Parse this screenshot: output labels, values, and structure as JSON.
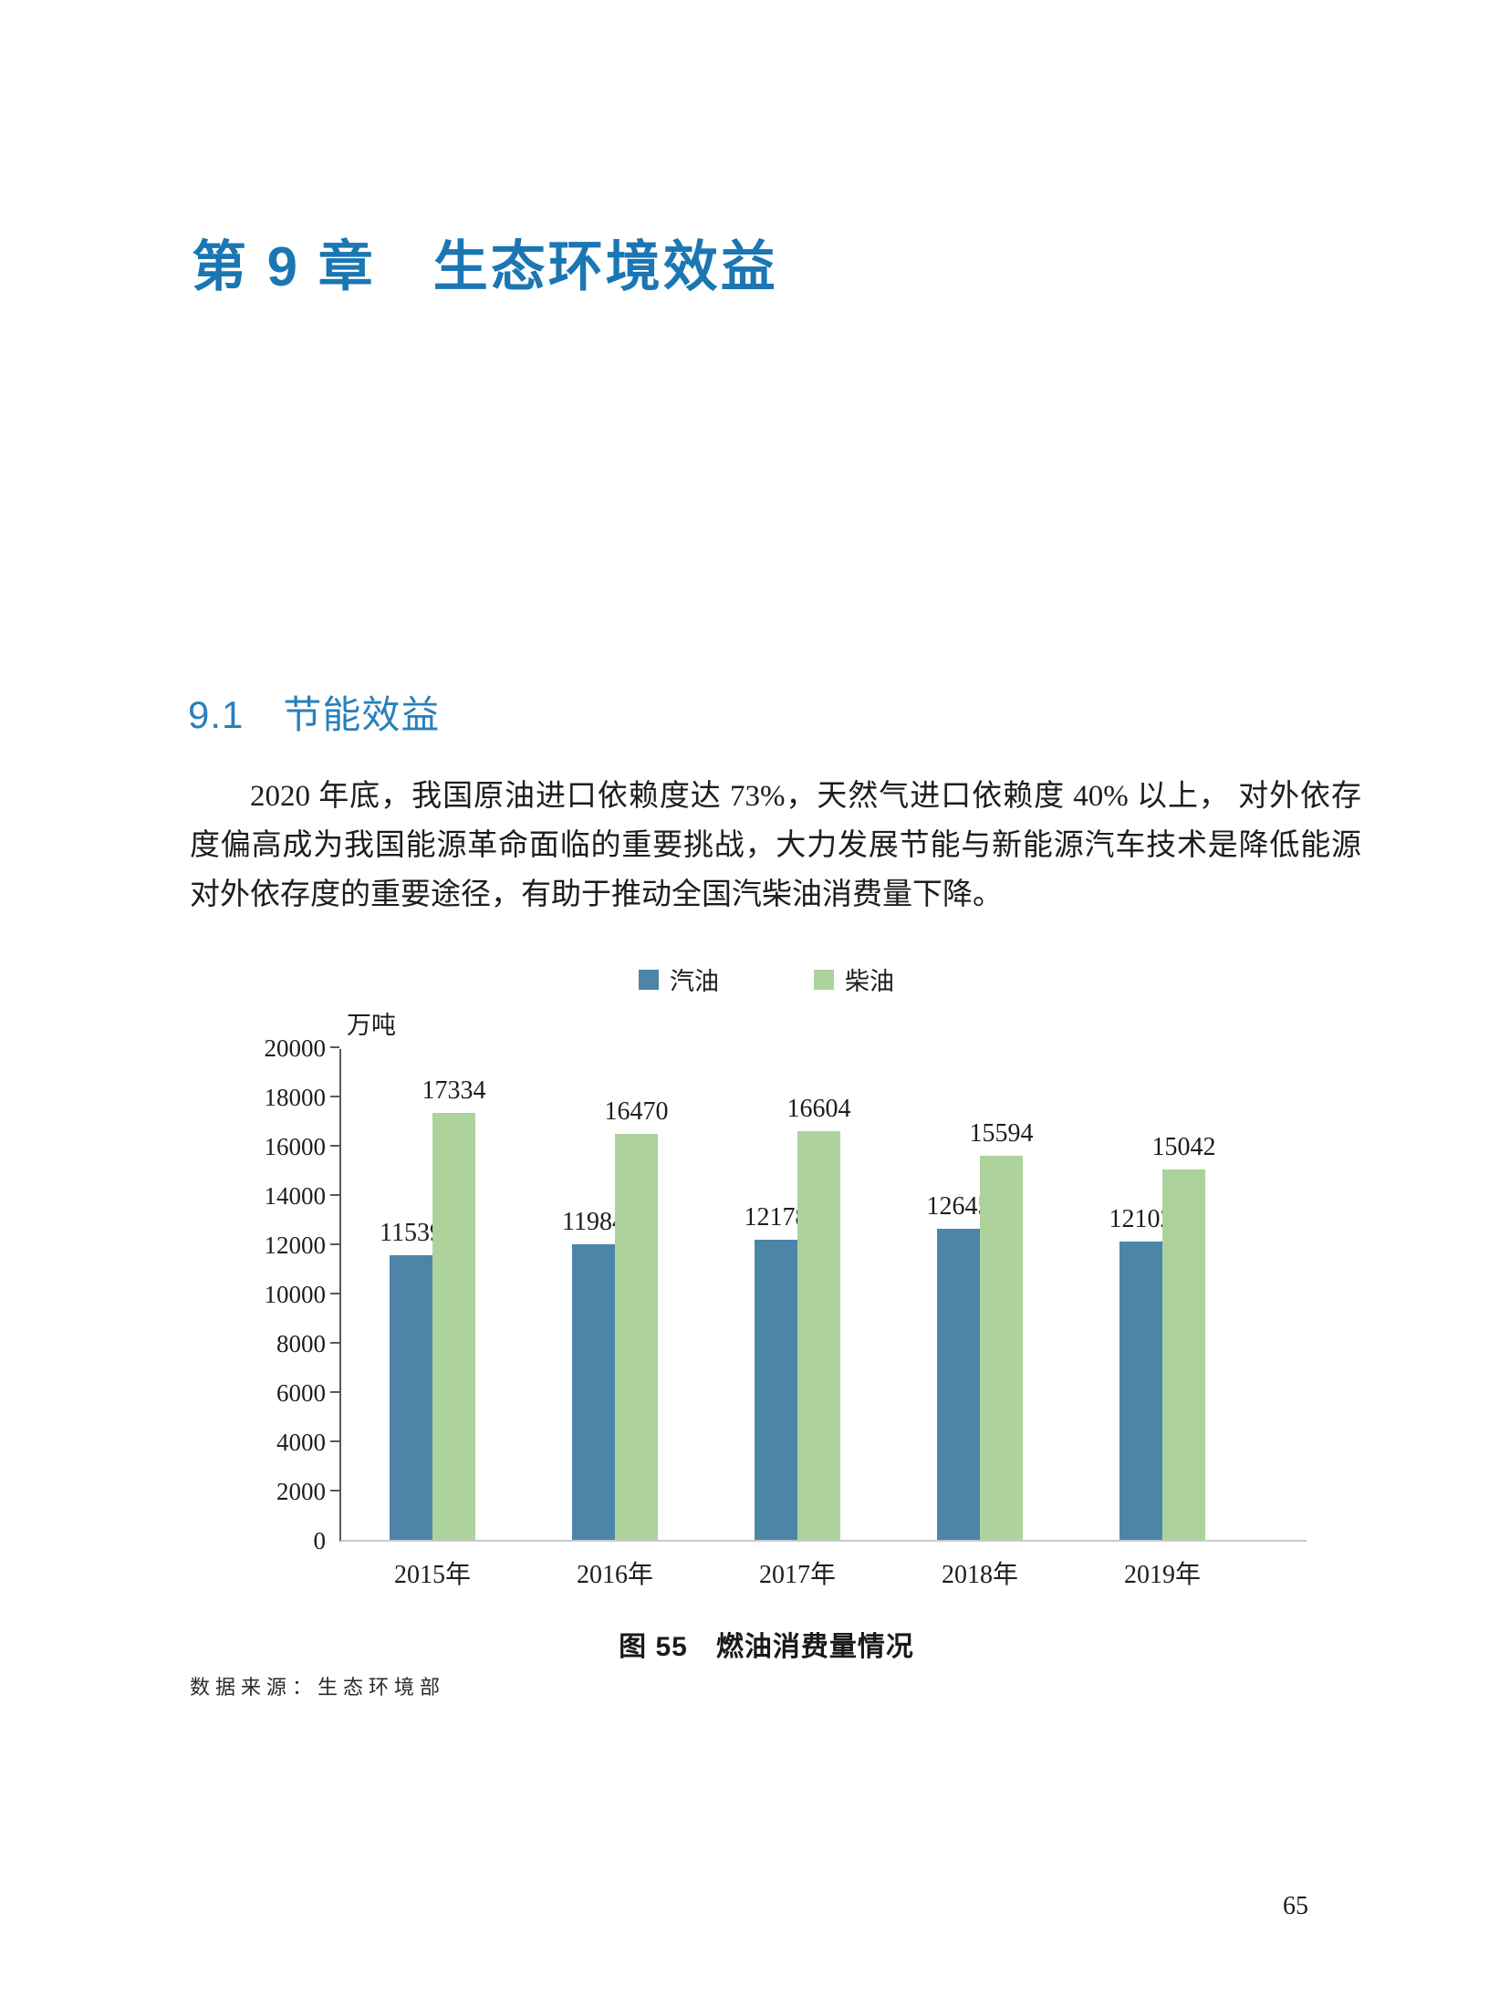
{
  "page": {
    "number": "65"
  },
  "chapter": {
    "title": "第 9 章　生态环境效益"
  },
  "section": {
    "title": "9.1　节能效益"
  },
  "paragraph": {
    "text": "2020 年底，我国原油进口依赖度达 73%，天然气进口依赖度 40% 以上， 对外依存度偏高成为我国能源革命面临的重要挑战，大力发展节能与新能源汽车技术是降低能源对外依存度的重要途径，有助于推动全国汽柴油消费量下降。"
  },
  "chart_data": {
    "type": "bar",
    "title": "图 55　燃油消费量情况",
    "unit_label": "万吨",
    "categories": [
      "2015年",
      "2016年",
      "2017年",
      "2018年",
      "2019年"
    ],
    "series": [
      {
        "name": "汽油",
        "color": "#4d85a8",
        "values": [
          11539,
          11984,
          12178,
          12645,
          12102
        ]
      },
      {
        "name": "柴油",
        "color": "#aed29c",
        "values": [
          17334,
          16470,
          16604,
          15594,
          15042
        ]
      }
    ],
    "ylim": [
      0,
      20000
    ],
    "yticks": [
      0,
      2000,
      4000,
      6000,
      8000,
      10000,
      12000,
      14000,
      16000,
      18000,
      20000
    ],
    "grid": false,
    "legend_position": "top-center",
    "value_labels": true,
    "axis_color": "#595959",
    "baseline_color": "#c9c9c9"
  },
  "caption": {
    "text": "图 55　燃油消费量情况"
  },
  "source": {
    "text": "数据来源：生态环境部"
  }
}
